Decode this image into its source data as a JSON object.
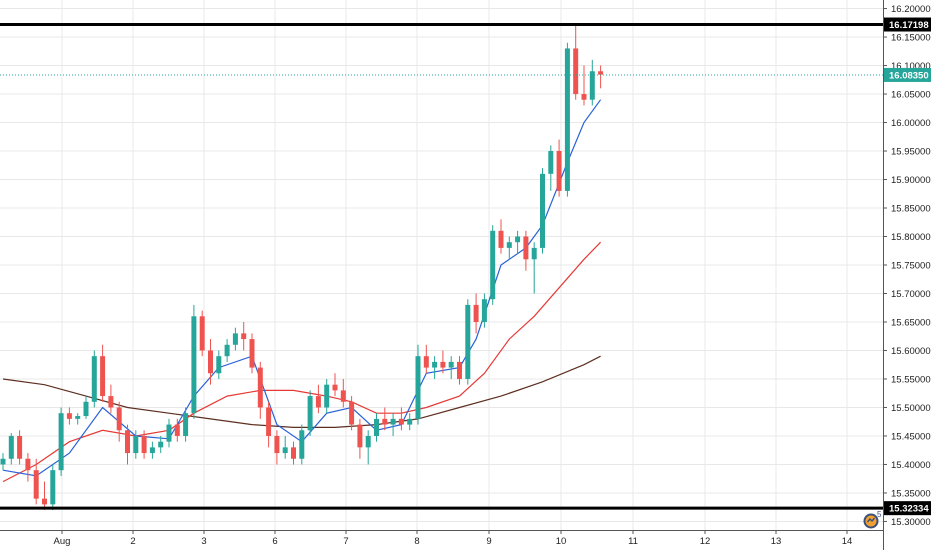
{
  "chart_data": {
    "type": "candlestick",
    "y_ticks": [
      "15.30000",
      "15.35000",
      "15.40000",
      "15.45000",
      "15.50000",
      "15.55000",
      "15.60000",
      "15.65000",
      "15.70000",
      "15.75000",
      "15.80000",
      "15.85000",
      "15.90000",
      "15.95000",
      "16.00000",
      "16.05000",
      "16.10000",
      "16.15000",
      "16.20000"
    ],
    "y_range": [
      15.285,
      16.215
    ],
    "x_ticks": [
      {
        "label": "Aug",
        "t": 0
      },
      {
        "label": "2",
        "t": 1
      },
      {
        "label": "3",
        "t": 2
      },
      {
        "label": "6",
        "t": 3
      },
      {
        "label": "7",
        "t": 4
      },
      {
        "label": "8",
        "t": 5
      },
      {
        "label": "9",
        "t": 6
      },
      {
        "label": "10",
        "t": 7
      },
      {
        "label": "11",
        "t": 8
      },
      {
        "label": "12",
        "t": 9
      },
      {
        "label": "13",
        "t": 10
      },
      {
        "label": "14",
        "t": 11
      }
    ],
    "horizontal_levels": [
      {
        "value": 16.17198,
        "label": "16.17198",
        "style": "thick-black"
      },
      {
        "value": 15.32334,
        "label": "15.32334",
        "style": "thick-black"
      }
    ],
    "last_price": {
      "value": 16.0835,
      "label": "16.08350",
      "color": "#26a69a"
    },
    "candles": [
      [
        15.4,
        15.42,
        15.39,
        15.41
      ],
      [
        15.41,
        15.455,
        15.4,
        15.45
      ],
      [
        15.45,
        15.46,
        15.4,
        15.41
      ],
      [
        15.41,
        15.42,
        15.37,
        15.39
      ],
      [
        15.39,
        15.41,
        15.33,
        15.34
      ],
      [
        15.34,
        15.37,
        15.32,
        15.33
      ],
      [
        15.33,
        15.4,
        15.32,
        15.39
      ],
      [
        15.39,
        15.5,
        15.38,
        15.49
      ],
      [
        15.49,
        15.5,
        15.47,
        15.48
      ],
      [
        15.48,
        15.49,
        15.47,
        15.485
      ],
      [
        15.485,
        15.52,
        15.48,
        15.51
      ],
      [
        15.51,
        15.6,
        15.5,
        15.59
      ],
      [
        15.59,
        15.61,
        15.51,
        15.52
      ],
      [
        15.52,
        15.54,
        15.49,
        15.5
      ],
      [
        15.5,
        15.51,
        15.44,
        15.46
      ],
      [
        15.46,
        15.47,
        15.4,
        15.42
      ],
      [
        15.42,
        15.46,
        15.41,
        15.45
      ],
      [
        15.45,
        15.46,
        15.41,
        15.42
      ],
      [
        15.42,
        15.44,
        15.41,
        15.43
      ],
      [
        15.43,
        15.45,
        15.42,
        15.44
      ],
      [
        15.44,
        15.48,
        15.43,
        15.47
      ],
      [
        15.47,
        15.48,
        15.44,
        15.45
      ],
      [
        15.45,
        15.5,
        15.44,
        15.49
      ],
      [
        15.49,
        15.68,
        15.48,
        15.66
      ],
      [
        15.66,
        15.67,
        15.59,
        15.6
      ],
      [
        15.6,
        15.62,
        15.54,
        15.56
      ],
      [
        15.56,
        15.6,
        15.55,
        15.59
      ],
      [
        15.59,
        15.62,
        15.58,
        15.61
      ],
      [
        15.61,
        15.64,
        15.6,
        15.63
      ],
      [
        15.63,
        15.65,
        15.6,
        15.62
      ],
      [
        15.62,
        15.63,
        15.56,
        15.57
      ],
      [
        15.57,
        15.58,
        15.48,
        15.5
      ],
      [
        15.5,
        15.51,
        15.43,
        15.45
      ],
      [
        15.45,
        15.46,
        15.4,
        15.42
      ],
      [
        15.42,
        15.45,
        15.41,
        15.43
      ],
      [
        15.43,
        15.44,
        15.4,
        15.41
      ],
      [
        15.41,
        15.47,
        15.4,
        15.46
      ],
      [
        15.46,
        15.53,
        15.45,
        15.52
      ],
      [
        15.52,
        15.54,
        15.49,
        15.5
      ],
      [
        15.5,
        15.55,
        15.49,
        15.54
      ],
      [
        15.54,
        15.56,
        15.52,
        15.53
      ],
      [
        15.53,
        15.55,
        15.5,
        15.51
      ],
      [
        15.51,
        15.52,
        15.46,
        15.47
      ],
      [
        15.47,
        15.48,
        15.41,
        15.43
      ],
      [
        15.43,
        15.46,
        15.4,
        15.45
      ],
      [
        15.45,
        15.49,
        15.44,
        15.48
      ],
      [
        15.48,
        15.5,
        15.46,
        15.47
      ],
      [
        15.47,
        15.49,
        15.45,
        15.48
      ],
      [
        15.48,
        15.5,
        15.46,
        15.47
      ],
      [
        15.47,
        15.49,
        15.46,
        15.48
      ],
      [
        15.48,
        15.61,
        15.47,
        15.59
      ],
      [
        15.59,
        15.61,
        15.56,
        15.57
      ],
      [
        15.57,
        15.59,
        15.55,
        15.58
      ],
      [
        15.58,
        15.6,
        15.56,
        15.57
      ],
      [
        15.57,
        15.59,
        15.55,
        15.58
      ],
      [
        15.58,
        15.59,
        15.54,
        15.55
      ],
      [
        15.55,
        15.69,
        15.54,
        15.68
      ],
      [
        15.68,
        15.7,
        15.63,
        15.65
      ],
      [
        15.65,
        15.7,
        15.64,
        15.69
      ],
      [
        15.69,
        15.82,
        15.68,
        15.81
      ],
      [
        15.81,
        15.83,
        15.77,
        15.78
      ],
      [
        15.78,
        15.8,
        15.76,
        15.79
      ],
      [
        15.79,
        15.81,
        15.77,
        15.8
      ],
      [
        15.8,
        15.81,
        15.74,
        15.76
      ],
      [
        15.76,
        15.79,
        15.7,
        15.78
      ],
      [
        15.78,
        15.92,
        15.77,
        15.91
      ],
      [
        15.91,
        15.96,
        15.88,
        15.95
      ],
      [
        15.95,
        15.97,
        15.87,
        15.88
      ],
      [
        15.88,
        16.14,
        15.87,
        16.13
      ],
      [
        16.13,
        16.17,
        16.04,
        16.05
      ],
      [
        16.05,
        16.1,
        16.03,
        16.04
      ],
      [
        16.04,
        16.11,
        16.03,
        16.09
      ],
      [
        16.09,
        16.1,
        16.06,
        16.084
      ]
    ],
    "overlay_series": [
      {
        "color": "#2962d8",
        "kind": "moving-average"
      },
      {
        "color": "#e53935",
        "kind": "moving-average"
      },
      {
        "color": "#5d2f20",
        "kind": "moving-average"
      }
    ],
    "ma_blue": [
      [
        0,
        15.39
      ],
      [
        4,
        15.38
      ],
      [
        8,
        15.42
      ],
      [
        12,
        15.5
      ],
      [
        16,
        15.45
      ],
      [
        20,
        15.445
      ],
      [
        23,
        15.52
      ],
      [
        26,
        15.57
      ],
      [
        30,
        15.59
      ],
      [
        33,
        15.47
      ],
      [
        36,
        15.44
      ],
      [
        39,
        15.49
      ],
      [
        42,
        15.5
      ],
      [
        45,
        15.46
      ],
      [
        48,
        15.47
      ],
      [
        51,
        15.56
      ],
      [
        55,
        15.57
      ],
      [
        57,
        15.62
      ],
      [
        60,
        15.75
      ],
      [
        63,
        15.78
      ],
      [
        65,
        15.82
      ],
      [
        68,
        15.93
      ],
      [
        70,
        16.0
      ],
      [
        72,
        16.04
      ]
    ],
    "ma_red": [
      [
        0,
        15.37
      ],
      [
        4,
        15.4
      ],
      [
        8,
        15.44
      ],
      [
        12,
        15.46
      ],
      [
        16,
        15.45
      ],
      [
        20,
        15.46
      ],
      [
        23,
        15.49
      ],
      [
        27,
        15.52
      ],
      [
        31,
        15.53
      ],
      [
        35,
        15.53
      ],
      [
        39,
        15.52
      ],
      [
        42,
        15.51
      ],
      [
        45,
        15.49
      ],
      [
        48,
        15.49
      ],
      [
        51,
        15.5
      ],
      [
        55,
        15.52
      ],
      [
        58,
        15.56
      ],
      [
        61,
        15.62
      ],
      [
        64,
        15.66
      ],
      [
        67,
        15.71
      ],
      [
        70,
        15.76
      ],
      [
        72,
        15.79
      ]
    ],
    "ma_brown": [
      [
        0,
        15.55
      ],
      [
        5,
        15.54
      ],
      [
        10,
        15.52
      ],
      [
        15,
        15.5
      ],
      [
        20,
        15.49
      ],
      [
        25,
        15.48
      ],
      [
        30,
        15.47
      ],
      [
        35,
        15.465
      ],
      [
        40,
        15.465
      ],
      [
        45,
        15.47
      ],
      [
        50,
        15.48
      ],
      [
        55,
        15.5
      ],
      [
        60,
        15.52
      ],
      [
        65,
        15.545
      ],
      [
        70,
        15.575
      ],
      [
        72,
        15.59
      ]
    ]
  },
  "colors": {
    "up": "#26a69a",
    "down": "#ef5350",
    "grid": "#e8e8e8",
    "level_line": "#000000",
    "last_price_line": "#26a69a",
    "axis_text": "#222222"
  },
  "logo": {
    "name": "tradingview-logo-icon",
    "badge": "5"
  }
}
